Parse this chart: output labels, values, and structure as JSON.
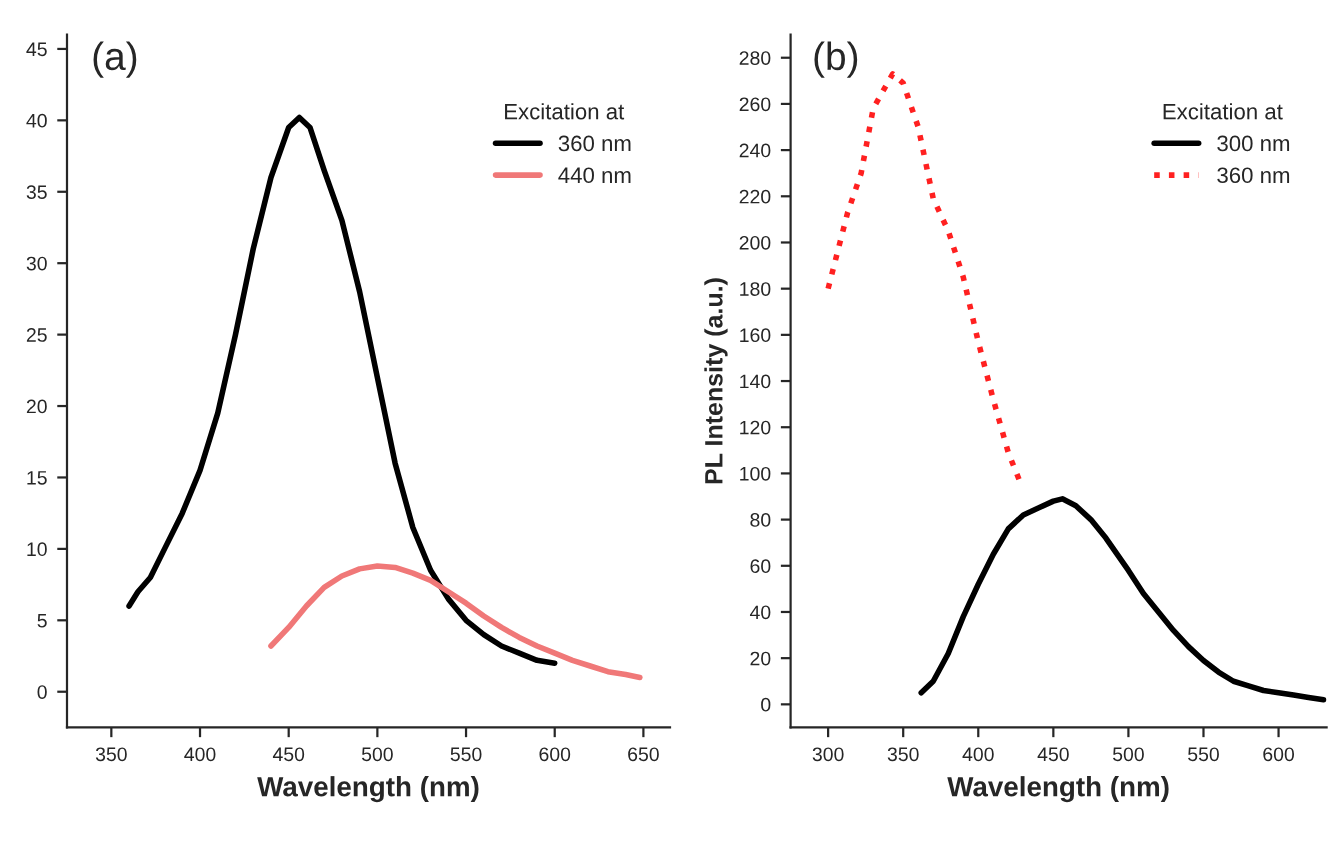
{
  "chart_data": [
    {
      "type": "line",
      "xlabel": "Wavelength (nm)",
      "legend_title": "Excitation at",
      "annotations": [
        "(a)"
      ],
      "xlim": [
        325,
        665
      ],
      "xticks": [
        350,
        400,
        450,
        500,
        550,
        600,
        650
      ],
      "ylim": [
        -2.5,
        46
      ],
      "yticks": [
        0,
        5,
        10,
        15,
        20,
        25,
        30,
        35,
        40,
        45
      ],
      "legend": "top right",
      "series": [
        {
          "name": "360 nm",
          "color": "#000000",
          "line_style": "solid",
          "x": [
            360,
            365,
            372,
            380,
            390,
            400,
            410,
            420,
            430,
            440,
            450,
            456,
            462,
            470,
            480,
            490,
            500,
            510,
            520,
            530,
            540,
            550,
            560,
            570,
            580,
            590,
            600
          ],
          "values": [
            6,
            7,
            8,
            10,
            12.5,
            15.5,
            19.5,
            25,
            31,
            36,
            39.5,
            40.2,
            39.5,
            36.5,
            33,
            28,
            22,
            16,
            11.5,
            8.5,
            6.5,
            5,
            4,
            3.2,
            2.7,
            2.2,
            2
          ]
        },
        {
          "name": "440 nm",
          "color": "#f07878",
          "line_style": "solid",
          "x": [
            440,
            450,
            460,
            470,
            480,
            490,
            500,
            510,
            520,
            530,
            540,
            550,
            560,
            570,
            580,
            590,
            600,
            610,
            620,
            630,
            640,
            648
          ],
          "values": [
            3.2,
            4.5,
            6,
            7.3,
            8.1,
            8.6,
            8.8,
            8.7,
            8.3,
            7.8,
            7,
            6.2,
            5.3,
            4.5,
            3.8,
            3.2,
            2.7,
            2.2,
            1.8,
            1.4,
            1.2,
            1
          ]
        }
      ]
    },
    {
      "type": "line",
      "xlabel": "Wavelength (nm)",
      "ylabel": "PL Intensity (a.u.)",
      "legend_title": "Excitation at",
      "annotations": [
        "(b)"
      ],
      "xlim": [
        275,
        632
      ],
      "xticks": [
        300,
        350,
        400,
        450,
        500,
        550,
        600
      ],
      "ylim": [
        -10,
        290
      ],
      "yticks": [
        0,
        20,
        40,
        60,
        80,
        100,
        120,
        140,
        160,
        180,
        200,
        220,
        240,
        260,
        280
      ],
      "legend": "top right",
      "series": [
        {
          "name": "300 nm",
          "color": "#000000",
          "line_style": "solid",
          "x": [
            362,
            370,
            380,
            390,
            400,
            410,
            420,
            430,
            440,
            450,
            456,
            465,
            475,
            485,
            500,
            510,
            520,
            530,
            540,
            550,
            560,
            570,
            580,
            590,
            600,
            610,
            620,
            630
          ],
          "values": [
            5,
            10,
            22,
            38,
            52,
            65,
            76,
            82,
            85,
            88,
            89,
            86,
            80,
            72,
            58,
            48,
            40,
            32,
            25,
            19,
            14,
            10,
            8,
            6,
            5,
            4,
            3,
            2
          ]
        },
        {
          "name": "360 nm",
          "color": "#ff2020",
          "line_style": "dotted",
          "x": [
            300,
            313,
            322,
            330,
            343,
            350,
            360,
            370,
            380,
            390,
            400,
            410,
            420,
            428
          ],
          "values": [
            180,
            213,
            230,
            258,
            273,
            269,
            250,
            219,
            205,
            185,
            157,
            132,
            109,
            96
          ]
        }
      ]
    }
  ]
}
